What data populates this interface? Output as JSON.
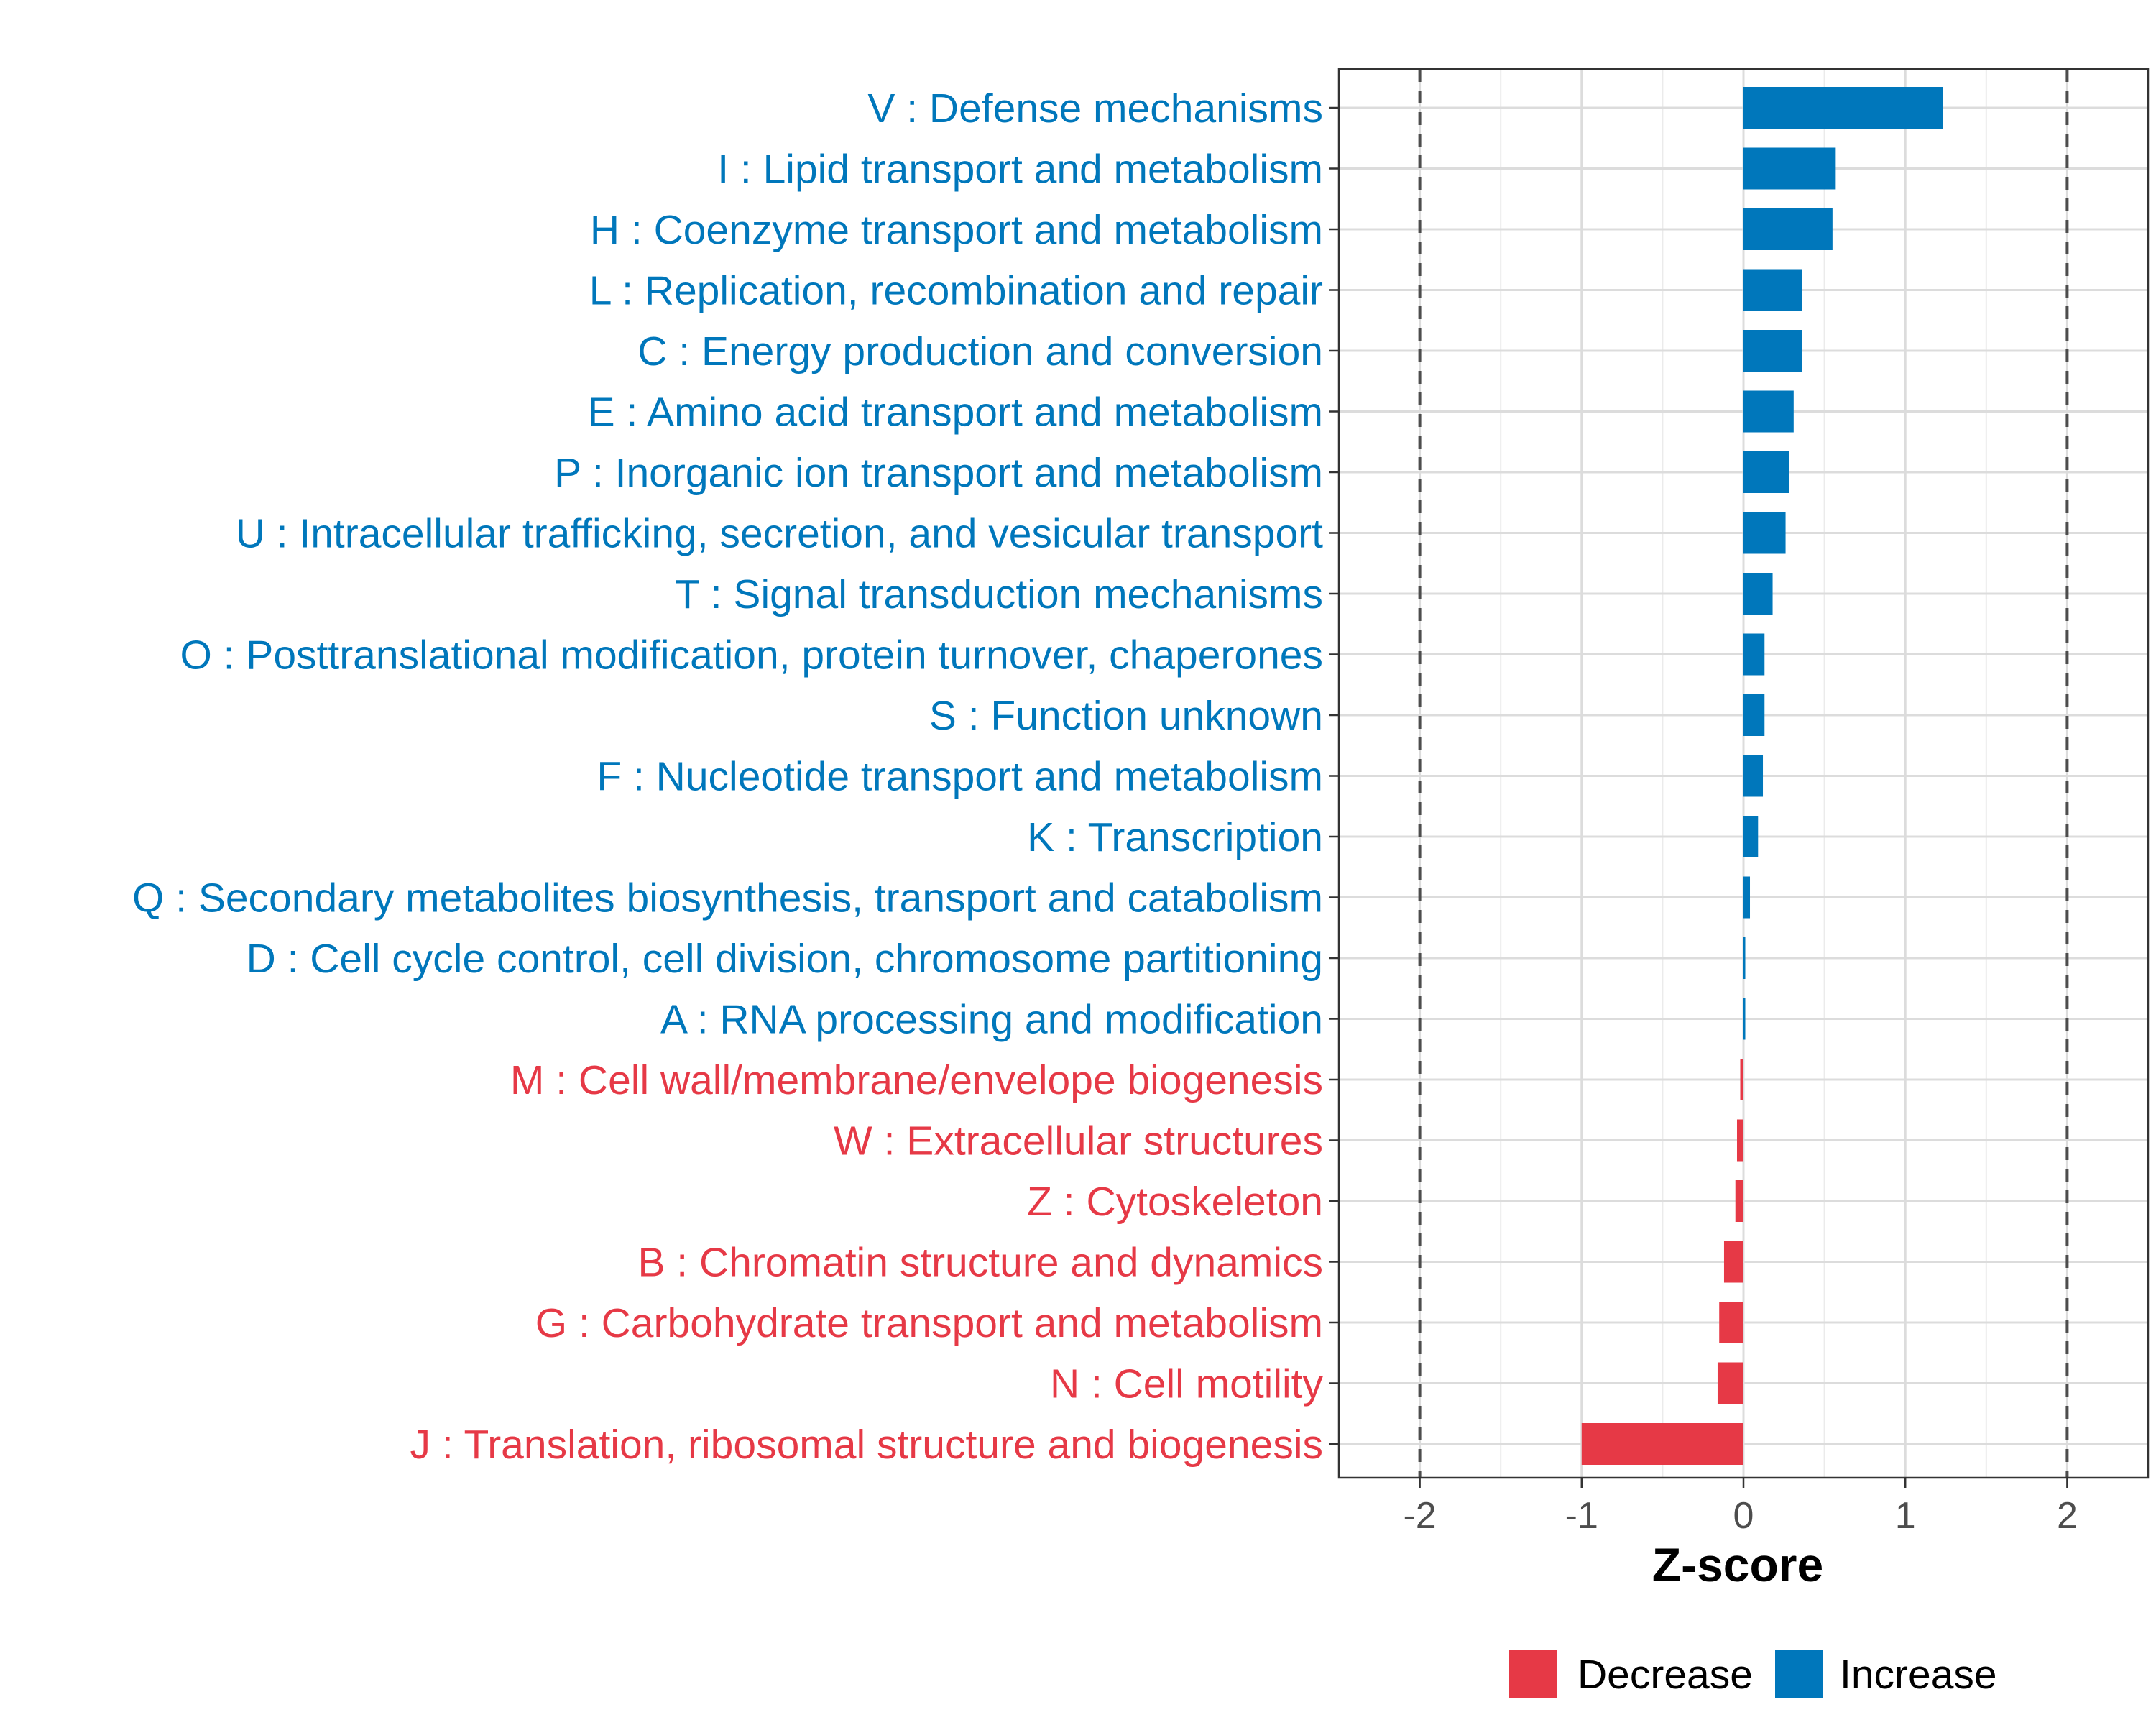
{
  "chart_data": {
    "type": "bar",
    "orientation": "horizontal",
    "xlabel": "Z-score",
    "xlim": [
      -2.5,
      2.5
    ],
    "xticks": [
      -2,
      -1,
      0,
      1,
      2
    ],
    "xtick_labels": [
      "-2",
      "-1",
      "0",
      "1",
      "2"
    ],
    "reference_lines": [
      -2,
      2
    ],
    "grid": true,
    "legend_position": "bottom",
    "legend": [
      {
        "key": "decrease",
        "label": "Decrease",
        "color": "#E63946"
      },
      {
        "key": "increase",
        "label": "Increase",
        "color": "#0077BB"
      }
    ],
    "categories": [
      "V : Defense mechanisms",
      "I : Lipid transport and metabolism",
      "H : Coenzyme transport and metabolism",
      "L : Replication, recombination and repair",
      "C : Energy production and conversion",
      "E : Amino acid transport and metabolism",
      "P : Inorganic ion transport and metabolism",
      "U : Intracellular trafficking, secretion, and vesicular transport",
      "T : Signal transduction mechanisms",
      "O : Posttranslational modification, protein turnover, chaperones",
      "S : Function unknown",
      "F : Nucleotide transport and metabolism",
      "K : Transcription",
      "Q : Secondary metabolites biosynthesis, transport and catabolism",
      "D : Cell cycle control, cell division, chromosome partitioning",
      "A : RNA processing and modification",
      "M : Cell wall/membrane/envelope biogenesis",
      "W : Extracellular structures",
      "Z : Cytoskeleton",
      "B : Chromatin structure and dynamics",
      "G : Carbohydrate transport and metabolism",
      "N : Cell motility",
      "J : Translation, ribosomal structure and biogenesis"
    ],
    "values": [
      1.23,
      0.57,
      0.55,
      0.36,
      0.36,
      0.31,
      0.28,
      0.26,
      0.18,
      0.13,
      0.13,
      0.12,
      0.09,
      0.04,
      0.01,
      0.005,
      -0.02,
      -0.04,
      -0.05,
      -0.12,
      -0.15,
      -0.16,
      -1.0
    ],
    "groups": [
      "increase",
      "increase",
      "increase",
      "increase",
      "increase",
      "increase",
      "increase",
      "increase",
      "increase",
      "increase",
      "increase",
      "increase",
      "increase",
      "increase",
      "increase",
      "increase",
      "decrease",
      "decrease",
      "decrease",
      "decrease",
      "decrease",
      "decrease",
      "decrease"
    ]
  }
}
